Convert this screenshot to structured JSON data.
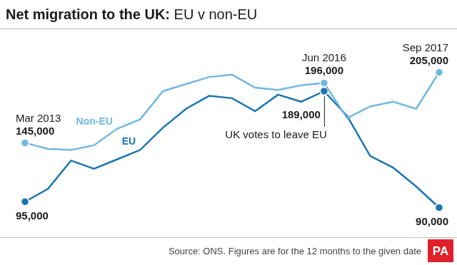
{
  "chart_data": {
    "type": "line",
    "title": "Net migration to the UK: EU v non-EU",
    "categories": [
      "Mar 2013",
      null,
      null,
      null,
      null,
      null,
      null,
      null,
      null,
      null,
      null,
      null,
      null,
      "Jun 2016",
      null,
      null,
      null,
      null,
      "Sep 2017"
    ],
    "series": [
      {
        "name": "Non-EU",
        "color": "#72b8e1",
        "marker": "circle",
        "values": [
          145000,
          140000,
          139000,
          143000,
          157000,
          165000,
          189000,
          195000,
          201000,
          203000,
          192000,
          190000,
          194000,
          196000,
          166000,
          176000,
          180000,
          174000,
          205000
        ],
        "value_labels": [
          "145,000",
          null,
          null,
          null,
          null,
          null,
          null,
          null,
          null,
          null,
          null,
          null,
          null,
          "196,000",
          null,
          null,
          null,
          null,
          "205,000"
        ]
      },
      {
        "name": "EU",
        "color": "#1a75b0",
        "marker": "circle",
        "values": [
          95000,
          106000,
          130000,
          123000,
          131000,
          139000,
          158000,
          174000,
          185000,
          183000,
          172000,
          186000,
          180000,
          189000,
          168000,
          134000,
          124000,
          108000,
          90000
        ],
        "value_labels": [
          "95,000",
          null,
          null,
          null,
          null,
          null,
          null,
          null,
          null,
          null,
          null,
          null,
          null,
          "189,000",
          null,
          null,
          null,
          null,
          "90,000"
        ]
      }
    ],
    "ylim": [
      80000,
      215000
    ],
    "tick_labels": false,
    "grid": false,
    "annotations": [
      {
        "text": "UK votes to leave EU",
        "series": "EU",
        "category": "Jun 2016"
      }
    ],
    "source": "Source: ONS. Figures are for the 12 months to the given date",
    "logo": "PA"
  }
}
